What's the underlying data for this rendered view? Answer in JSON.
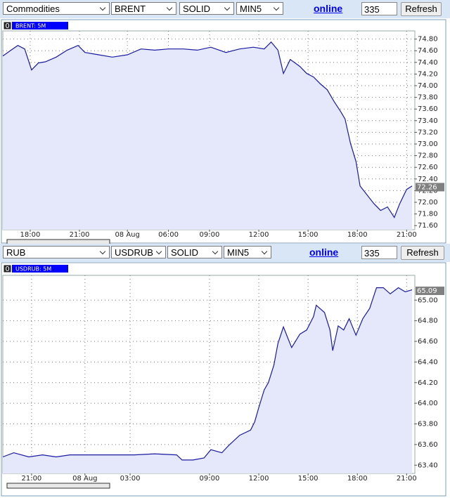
{
  "toolbars": [
    {
      "selects": [
        "Commodities",
        "BRENT",
        "SOLID",
        "MIN5"
      ],
      "link": "online",
      "count": "335",
      "button": "Refresh"
    },
    {
      "selects": [
        "RUB",
        "USDRUB",
        "SOLID",
        "MIN5"
      ],
      "link": "online",
      "count": "335",
      "button": "Refresh"
    }
  ],
  "chart_data": [
    {
      "type": "area",
      "badge": "0",
      "title": "BRENT: 5M",
      "color": "#1a1aa0",
      "fill": "#e4e8fa",
      "grid": true,
      "x": [
        0,
        6,
        11,
        16,
        21,
        26,
        31,
        39,
        47,
        55,
        60,
        70,
        80,
        91,
        101,
        111,
        121,
        132,
        142,
        152,
        163,
        173,
        183,
        191,
        196,
        201,
        205,
        210,
        217,
        222,
        227,
        232,
        237,
        242,
        247,
        250,
        254,
        258,
        261,
        265,
        271,
        276,
        281,
        286,
        290,
        295,
        299
      ],
      "values": [
        74.51,
        74.61,
        74.69,
        74.63,
        74.27,
        74.39,
        74.41,
        74.49,
        74.61,
        74.69,
        74.57,
        74.53,
        74.49,
        74.53,
        74.63,
        74.61,
        74.63,
        74.63,
        74.61,
        74.66,
        74.57,
        74.63,
        74.66,
        74.63,
        74.75,
        74.61,
        74.21,
        74.45,
        74.33,
        74.21,
        74.15,
        74.03,
        73.93,
        73.73,
        73.55,
        73.43,
        73.01,
        72.7,
        72.28,
        72.16,
        71.98,
        71.86,
        71.92,
        71.74,
        71.98,
        72.22,
        72.28
      ],
      "current": 72.26,
      "xlim": [
        0,
        301
      ],
      "ylim": [
        71.53,
        74.94
      ],
      "xticks": [
        {
          "value": 20,
          "label": "18:00"
        },
        {
          "value": 56,
          "label": "21:00"
        },
        {
          "value": 91,
          "label": "08 Aug"
        },
        {
          "value": 121,
          "label": "06:00"
        },
        {
          "value": 151,
          "label": "09:00"
        },
        {
          "value": 187,
          "label": "12:00"
        },
        {
          "value": 223,
          "label": "15:00"
        },
        {
          "value": 259,
          "label": "18:00"
        },
        {
          "value": 295,
          "label": "21:00"
        }
      ],
      "yticks": [
        {
          "value": 71.6,
          "label": "71.60"
        },
        {
          "value": 71.8,
          "label": "71.80"
        },
        {
          "value": 72,
          "label": "72.00"
        },
        {
          "value": 72.2,
          "label": "72.20"
        },
        {
          "value": 72.4,
          "label": "72.40"
        },
        {
          "value": 72.6,
          "label": "72.60"
        },
        {
          "value": 72.8,
          "label": "72.80"
        },
        {
          "value": 73,
          "label": "73.00"
        },
        {
          "value": 73.2,
          "label": "73.20"
        },
        {
          "value": 73.4,
          "label": "73.40"
        },
        {
          "value": 73.6,
          "label": "73.60"
        },
        {
          "value": 73.8,
          "label": "73.80"
        },
        {
          "value": 74,
          "label": "74.00"
        },
        {
          "value": 74.2,
          "label": "74.20"
        },
        {
          "value": 74.4,
          "label": "74.40"
        },
        {
          "value": 74.6,
          "label": "74.60"
        },
        {
          "value": 74.8,
          "label": "74.80"
        }
      ]
    },
    {
      "type": "area",
      "badge": "0",
      "title": "USDRUB: 5M",
      "color": "#1a1aa0",
      "fill": "#e4e8fa",
      "grid": true,
      "x": [
        0,
        8,
        19,
        29,
        39,
        49,
        65,
        80,
        96,
        111,
        127,
        131,
        139,
        147,
        152,
        160,
        165,
        173,
        181,
        184,
        187,
        191,
        194,
        198,
        201,
        205,
        208,
        211,
        217,
        222,
        227,
        229,
        235,
        239,
        241,
        245,
        249,
        253,
        258,
        263,
        268,
        273,
        278,
        283,
        289,
        294,
        299
      ],
      "values": [
        63.48,
        63.52,
        63.48,
        63.5,
        63.48,
        63.5,
        63.5,
        63.5,
        63.5,
        63.51,
        63.5,
        63.45,
        63.45,
        63.47,
        63.55,
        63.52,
        63.59,
        63.69,
        63.74,
        63.82,
        63.96,
        64.13,
        64.2,
        64.37,
        64.58,
        64.74,
        64.64,
        64.54,
        64.67,
        64.71,
        64.84,
        64.95,
        64.88,
        64.71,
        64.51,
        64.75,
        64.71,
        64.82,
        64.66,
        64.82,
        64.92,
        65.12,
        65.12,
        65.06,
        65.12,
        65.08,
        65.1
      ],
      "current": 65.09,
      "xlim": [
        0,
        301
      ],
      "ylim": [
        63.32,
        65.24
      ],
      "xticks": [
        {
          "value": 21,
          "label": "21:00"
        },
        {
          "value": 60,
          "label": "08 Aug"
        },
        {
          "value": 93,
          "label": "03:00"
        },
        {
          "value": 151,
          "label": "09:00"
        },
        {
          "value": 187,
          "label": "12:00"
        },
        {
          "value": 223,
          "label": "15:00"
        },
        {
          "value": 259,
          "label": "18:00"
        },
        {
          "value": 295,
          "label": "21:00"
        }
      ],
      "yticks": [
        {
          "value": 63.4,
          "label": "63.40"
        },
        {
          "value": 63.6,
          "label": "63.60"
        },
        {
          "value": 63.8,
          "label": "63.80"
        },
        {
          "value": 64,
          "label": "64.00"
        },
        {
          "value": 64.2,
          "label": "64.20"
        },
        {
          "value": 64.4,
          "label": "64.40"
        },
        {
          "value": 64.6,
          "label": "64.60"
        },
        {
          "value": 64.8,
          "label": "64.80"
        },
        {
          "value": 65,
          "label": "65.00"
        }
      ]
    }
  ]
}
